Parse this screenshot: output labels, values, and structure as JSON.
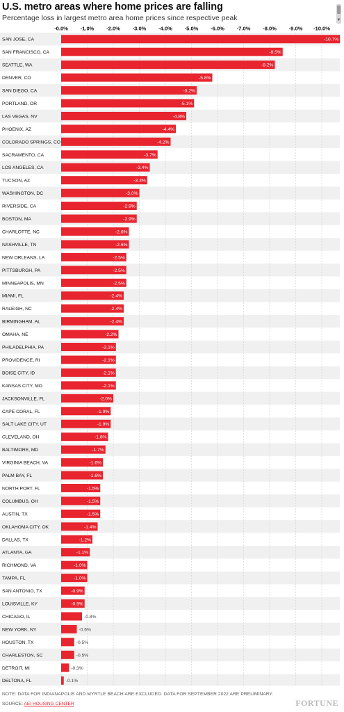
{
  "header": {
    "title": "U.S. metro areas where home prices are falling",
    "subtitle": "Percentage loss in largest metro area home prices since respective peak"
  },
  "footer": {
    "note": "NOTE: DATA FOR INDIANAPOLIS AND MYRTLE BEACH ARE EXCLUDED. DATA FOR SEPTEMBER 2022 ARE PRELIMINARY.",
    "source_prefix": "SOURCE: ",
    "source_link": "AEI HOUSING CENTER",
    "logo": "FORTUNE"
  },
  "colors": {
    "bar": "#e8242f",
    "row_alt": "#f0f0f0",
    "grid": "#d4d4d4",
    "text": "#111111"
  },
  "chart_data": {
    "type": "bar",
    "orientation": "horizontal",
    "title": "U.S. metro areas where home prices are falling",
    "subtitle": "Percentage loss in largest metro area home prices since respective peak",
    "xlabel": "",
    "ylabel": "",
    "xlim": [
      0,
      -10.7
    ],
    "ticks": [
      0,
      -1,
      -2,
      -3,
      -4,
      -5,
      -6,
      -7,
      -8,
      -9,
      -10
    ],
    "tick_labels": [
      "-0.0%",
      "-1.0%",
      "-2.0%",
      "-3.0%",
      "-4.0%",
      "-5.0%",
      "-6.0%",
      "-7.0%",
      "-8.0%",
      "-9.0%",
      "-10.0%"
    ],
    "grid": true,
    "categories": [
      "SAN JOSE, CA",
      "SAN FRANCISCO, CA",
      "SEATTLE, WA",
      "DENVER, CO",
      "SAN DIEGO, CA",
      "PORTLAND, OR",
      "LAS VEGAS, NV",
      "PHOENIX, AZ",
      "COLORADO SPRINGS, CO",
      "SACRAMENTO, CA",
      "LOS ANGELES, CA",
      "TUCSON, AZ",
      "WASHINGTON, DC",
      "RIVERSIDE, CA",
      "BOSTON, MA",
      "CHARLOTTE, NC",
      "NASHVILLE, TN",
      "NEW ORLEANS, LA",
      "PITTSBURGH, PA",
      "MINNEAPOLIS, MN",
      "MIAMI, FL",
      "RALEIGH, NC",
      "BIRMINGHAM, AL",
      "OMAHA, NE",
      "PHILADELPHIA, PA",
      "PROVIDENCE, RI",
      "BOISE CITY, ID",
      "KANSAS CITY, MO",
      "JACKSONVILLE, FL",
      "CAPE CORAL, FL",
      "SALT LAKE CITY, UT",
      "CLEVELAND, OH",
      "BALTIMORE, MD",
      "VIRGINIA BEACH, VA",
      "PALM BAY, FL",
      "NORTH PORT, FL",
      "COLUMBUS, OH",
      "AUSTIN, TX",
      "OKLAHOMA CITY, OK",
      "DALLAS, TX",
      "ATLANTA, GA",
      "RICHMOND, VA",
      "TAMPA, FL",
      "SAN ANTONIO, TX",
      "LOUISVILLE, KY",
      "CHICAGO, IL",
      "NEW YORK, NY",
      "HOUSTON, TX",
      "CHARLESTON, SC",
      "DETROIT, MI",
      "DELTONA, FL"
    ],
    "values": [
      -10.7,
      -8.5,
      -8.2,
      -5.8,
      -5.2,
      -5.1,
      -4.8,
      -4.4,
      -4.2,
      -3.7,
      -3.4,
      -3.3,
      -3.0,
      -2.9,
      -2.9,
      -2.6,
      -2.6,
      -2.5,
      -2.5,
      -2.5,
      -2.4,
      -2.4,
      -2.4,
      -2.2,
      -2.1,
      -2.1,
      -2.1,
      -2.1,
      -2.0,
      -1.9,
      -1.9,
      -1.8,
      -1.7,
      -1.6,
      -1.6,
      -1.5,
      -1.5,
      -1.5,
      -1.4,
      -1.2,
      -1.1,
      -1.0,
      -1.0,
      -0.9,
      -0.9,
      -0.8,
      -0.6,
      -0.5,
      -0.5,
      -0.3,
      -0.1
    ],
    "value_labels": [
      "-10.7%",
      "-8.5%",
      "-8.2%",
      "-5.8%",
      "-5.2%",
      "-5.1%",
      "-4.8%",
      "-4.4%",
      "-4.2%",
      "-3.7%",
      "-3.4%",
      "-3.3%",
      "-3.0%",
      "-2.9%",
      "-2.9%",
      "-2.6%",
      "-2.6%",
      "-2.5%",
      "-2.5%",
      "-2.5%",
      "-2.4%",
      "-2.4%",
      "-2.4%",
      "-2.2%",
      "-2.1%",
      "-2.1%",
      "-2.1%",
      "-2.1%",
      "-2.0%",
      "-1.9%",
      "-1.9%",
      "-1.8%",
      "-1.7%",
      "-1.6%",
      "-1.6%",
      "-1.5%",
      "-1.5%",
      "-1.5%",
      "-1.4%",
      "-1.2%",
      "-1.1%",
      "-1.0%",
      "-1.0%",
      "-0.9%",
      "-0.9%",
      "-0.8%",
      "-0.6%",
      "-0.5%",
      "-0.5%",
      "-0.3%",
      "-0.1%"
    ]
  }
}
